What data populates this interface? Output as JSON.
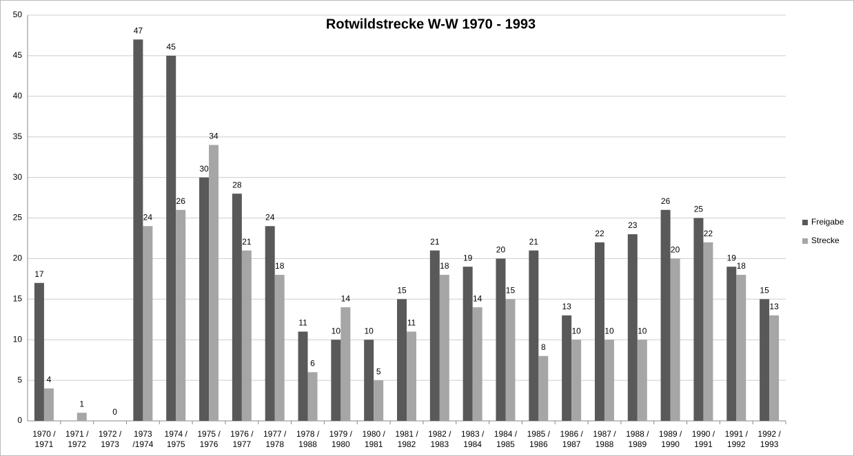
{
  "chart_data": {
    "type": "bar",
    "title": "Rotwildstrecke W-W 1970 - 1993",
    "categories": [
      "1970 /\n1971",
      "1971 /\n1972",
      "1972 /\n1973",
      "1973\n/1974",
      "1974 /\n1975",
      "1975 /\n1976",
      "1976 /\n1977",
      "1977 /\n1978",
      "1978 /\n1988",
      "1979 /\n1980",
      "1980 /\n1981",
      "1981 /\n1982",
      "1982 /\n1983",
      "1983 /\n1984",
      "1984 /\n1985",
      "1985 /\n1986",
      "1986 /\n1987",
      "1987 /\n1988",
      "1988 /\n1989",
      "1989 /\n1990",
      "1990 /\n1991",
      "1991 /\n1992",
      "1992 /\n1993"
    ],
    "series": [
      {
        "name": "Freigabe",
        "color": "#595959",
        "values": [
          17,
          null,
          null,
          47,
          45,
          30,
          28,
          24,
          11,
          10,
          10,
          15,
          21,
          19,
          20,
          21,
          13,
          22,
          23,
          26,
          25,
          19,
          15
        ]
      },
      {
        "name": "Strecke",
        "color": "#a6a6a6",
        "values": [
          4,
          1,
          0,
          24,
          26,
          34,
          21,
          18,
          6,
          14,
          5,
          11,
          18,
          14,
          15,
          8,
          10,
          10,
          10,
          20,
          22,
          18,
          13
        ]
      }
    ],
    "ylim": [
      0,
      50
    ],
    "yticks": [
      0,
      5,
      10,
      15,
      20,
      25,
      30,
      35,
      40,
      45,
      50
    ],
    "grid": true,
    "legend": "right"
  }
}
